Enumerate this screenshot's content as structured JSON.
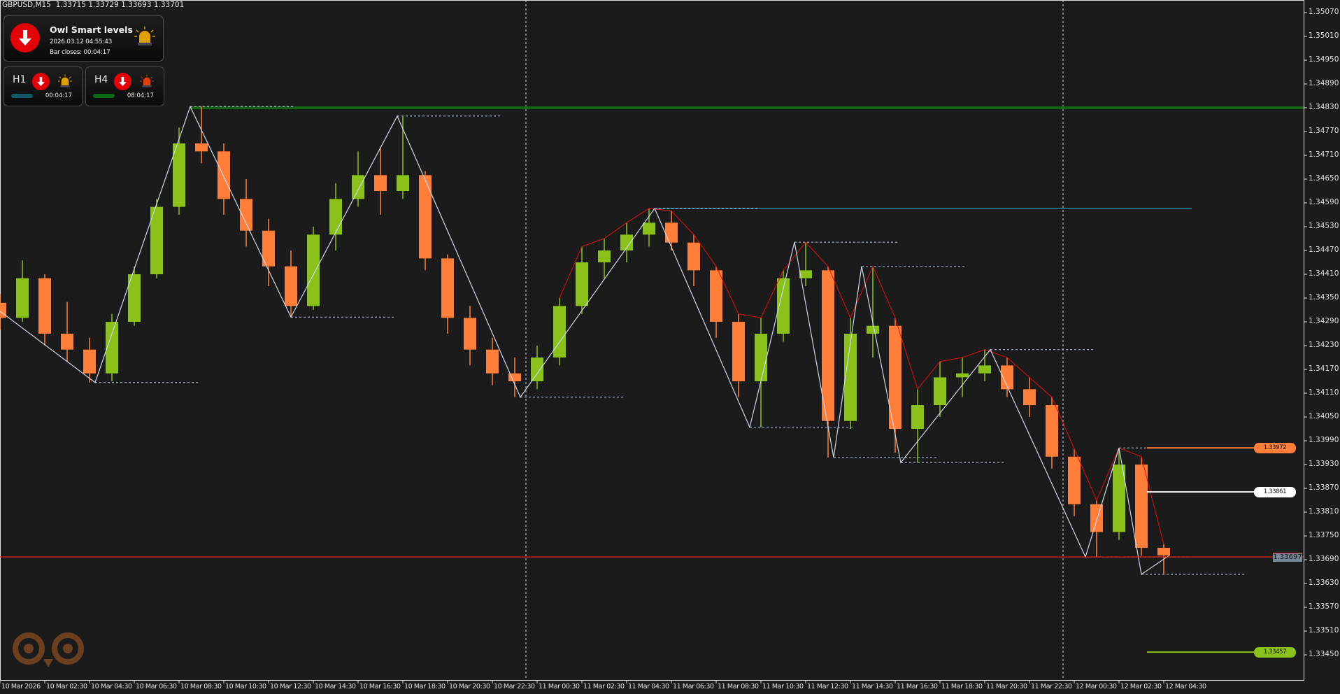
{
  "header": {
    "symbol": "GBPUSD,M15",
    "open": "1.33715",
    "high": "1.33729",
    "low": "1.33693",
    "close": "1.33701"
  },
  "panel": {
    "title": "Owl Smart levels",
    "datetime": "2026.03.12 04:55:43",
    "bar_closes": "Bar closes: 00:04:17",
    "direction": "down",
    "alarm_color": "#e0a000",
    "timeframes": [
      {
        "label": "H1",
        "direction": "down",
        "time": "00:04:17",
        "bar_color": "#0e5a6a",
        "alarm_color": "#e0a000"
      },
      {
        "label": "H4",
        "direction": "down",
        "time": "08:04:17",
        "bar_color": "#0a6a14",
        "alarm_color": "#e04010"
      }
    ]
  },
  "price_axis": {
    "ticks": [
      "1.35070",
      "1.35010",
      "1.34950",
      "1.34890",
      "1.34830",
      "1.34770",
      "1.34710",
      "1.34650",
      "1.34590",
      "1.34530",
      "1.34470",
      "1.34410",
      "1.34350",
      "1.34290",
      "1.34230",
      "1.34170",
      "1.34110",
      "1.34050",
      "1.33990",
      "1.33930",
      "1.33870",
      "1.33810",
      "1.33750",
      "1.33690",
      "1.33630",
      "1.33570",
      "1.33510",
      "1.33450"
    ],
    "bid": "1.33697"
  },
  "time_axis": {
    "ticks": [
      "10 Mar 2026",
      "10 Mar 02:30",
      "10 Mar 04:30",
      "10 Mar 06:30",
      "10 Mar 08:30",
      "10 Mar 10:30",
      "10 Mar 12:30",
      "10 Mar 14:30",
      "10 Mar 16:30",
      "10 Mar 18:30",
      "10 Mar 20:30",
      "10 Mar 22:30",
      "11 Mar 00:30",
      "11 Mar 02:30",
      "11 Mar 04:30",
      "11 Mar 06:30",
      "11 Mar 08:30",
      "11 Mar 10:30",
      "11 Mar 12:30",
      "11 Mar 14:30",
      "11 Mar 16:30",
      "11 Mar 18:30",
      "11 Mar 20:30",
      "11 Mar 22:30",
      "12 Mar 00:30",
      "12 Mar 02:30",
      "12 Mar 04:30"
    ]
  },
  "levels": [
    {
      "label": "1.33972",
      "price": 1.33972,
      "color": "#ff7f3a"
    },
    {
      "label": "1.33861",
      "price": 1.33861,
      "color": "#ffffff"
    },
    {
      "label": "1.33457",
      "price": 1.33457,
      "color": "#8ac11a"
    }
  ],
  "chart_data": {
    "type": "candlestick",
    "start": "10 Mar 00:00",
    "interval": "1h",
    "bull_color": "#8ac11a",
    "bear_color": "#ff7f3a",
    "candles": [
      [
        1.34338,
        1.3436,
        1.3427,
        1.343
      ],
      [
        1.343,
        1.34445,
        1.3429,
        1.344
      ],
      [
        1.344,
        1.3441,
        1.3423,
        1.3426
      ],
      [
        1.3426,
        1.3434,
        1.3419,
        1.3422
      ],
      [
        1.3422,
        1.3425,
        1.34137,
        1.3416
      ],
      [
        1.3416,
        1.3431,
        1.3414,
        1.3429
      ],
      [
        1.3429,
        1.3443,
        1.3428,
        1.3441
      ],
      [
        1.3441,
        1.346,
        1.344,
        1.3458
      ],
      [
        1.3458,
        1.3478,
        1.3456,
        1.3474
      ],
      [
        1.3474,
        1.34833,
        1.3469,
        1.3472
      ],
      [
        1.3472,
        1.3474,
        1.3456,
        1.346
      ],
      [
        1.346,
        1.3465,
        1.3448,
        1.3452
      ],
      [
        1.3452,
        1.3455,
        1.3438,
        1.3443
      ],
      [
        1.3443,
        1.3447,
        1.34302,
        1.3433
      ],
      [
        1.3433,
        1.3453,
        1.3432,
        1.3451
      ],
      [
        1.3451,
        1.3464,
        1.3447,
        1.346
      ],
      [
        1.346,
        1.3472,
        1.3458,
        1.3466
      ],
      [
        1.3466,
        1.3473,
        1.3456,
        1.3462
      ],
      [
        1.3462,
        1.34809,
        1.346,
        1.3466
      ],
      [
        1.3466,
        1.3467,
        1.3442,
        1.3445
      ],
      [
        1.3445,
        1.3446,
        1.3426,
        1.343
      ],
      [
        1.343,
        1.3433,
        1.3418,
        1.3422
      ],
      [
        1.3422,
        1.3425,
        1.3413,
        1.3416
      ],
      [
        1.3416,
        1.342,
        1.341,
        1.3414
      ],
      [
        1.3414,
        1.3423,
        1.3412,
        1.342
      ],
      [
        1.342,
        1.3435,
        1.3418,
        1.3433
      ],
      [
        1.3433,
        1.3448,
        1.3431,
        1.3444
      ],
      [
        1.3444,
        1.345,
        1.344,
        1.3447
      ],
      [
        1.3447,
        1.3454,
        1.3444,
        1.3451
      ],
      [
        1.3451,
        1.34576,
        1.3448,
        1.3454
      ],
      [
        1.3454,
        1.3457,
        1.3447,
        1.3449
      ],
      [
        1.3449,
        1.3451,
        1.3438,
        1.3442
      ],
      [
        1.3442,
        1.3443,
        1.3425,
        1.3429
      ],
      [
        1.3429,
        1.3431,
        1.341,
        1.3414
      ],
      [
        1.3414,
        1.343,
        1.34024,
        1.3426
      ],
      [
        1.3426,
        1.3442,
        1.3424,
        1.344
      ],
      [
        1.344,
        1.34491,
        1.3438,
        1.3442
      ],
      [
        1.3442,
        1.3443,
        1.33948,
        1.3404
      ],
      [
        1.3404,
        1.343,
        1.3402,
        1.3426
      ],
      [
        1.3426,
        1.3443,
        1.342,
        1.3428
      ],
      [
        1.3428,
        1.343,
        1.3396,
        1.3402
      ],
      [
        1.3402,
        1.3412,
        1.33935,
        1.3408
      ],
      [
        1.3408,
        1.3419,
        1.3405,
        1.3415
      ],
      [
        1.3415,
        1.342,
        1.341,
        1.3416
      ],
      [
        1.3416,
        1.3422,
        1.3414,
        1.3418
      ],
      [
        1.3418,
        1.342,
        1.341,
        1.3412
      ],
      [
        1.3412,
        1.3415,
        1.3405,
        1.3408
      ],
      [
        1.3408,
        1.341,
        1.3392,
        1.3395
      ],
      [
        1.3395,
        1.3397,
        1.338,
        1.3383
      ],
      [
        1.3383,
        1.3384,
        1.33697,
        1.3376
      ],
      [
        1.3376,
        1.33972,
        1.3374,
        1.3393
      ],
      [
        1.3393,
        1.3395,
        1.337,
        1.3372
      ],
      [
        1.3372,
        1.33729,
        1.33653,
        1.33701
      ]
    ],
    "zigzag": [
      [
        "10 Mar 00:00",
        1.34338
      ],
      [
        "10 Mar 04:45",
        1.34137
      ],
      [
        "10 Mar 09:00",
        1.34833
      ],
      [
        "10 Mar 13:30",
        1.34302
      ],
      [
        "10 Mar 18:15",
        1.34809
      ],
      [
        "10 Mar 23:45",
        1.341
      ],
      [
        "11 Mar 05:45",
        1.34576
      ],
      [
        "11 Mar 10:00",
        1.34024
      ],
      [
        "11 Mar 12:00",
        1.34491
      ],
      [
        "11 Mar 13:45",
        1.33948
      ],
      [
        "11 Mar 15:00",
        1.3443
      ],
      [
        "11 Mar 16:45",
        1.33935
      ],
      [
        "11 Mar 20:45",
        1.3422
      ],
      [
        "12 Mar 01:00",
        1.33697
      ],
      [
        "12 Mar 02:30",
        1.33972
      ],
      [
        "12 Mar 03:30",
        1.33653
      ],
      [
        "12 Mar 04:45",
        1.33701
      ]
    ],
    "resistance": {
      "price": 1.3483,
      "from": "10 Mar 09:00",
      "color": "#146414"
    },
    "swing_level": {
      "price": 1.34576,
      "from": "11 Mar 05:45",
      "color": "#1a6a7a"
    },
    "period_separators": [
      "11 Mar 00:00",
      "12 Mar 00:00"
    ],
    "current_price": 1.33697,
    "current_price_color": "#ff2020",
    "ylim": [
      1.3342,
      1.351
    ]
  }
}
